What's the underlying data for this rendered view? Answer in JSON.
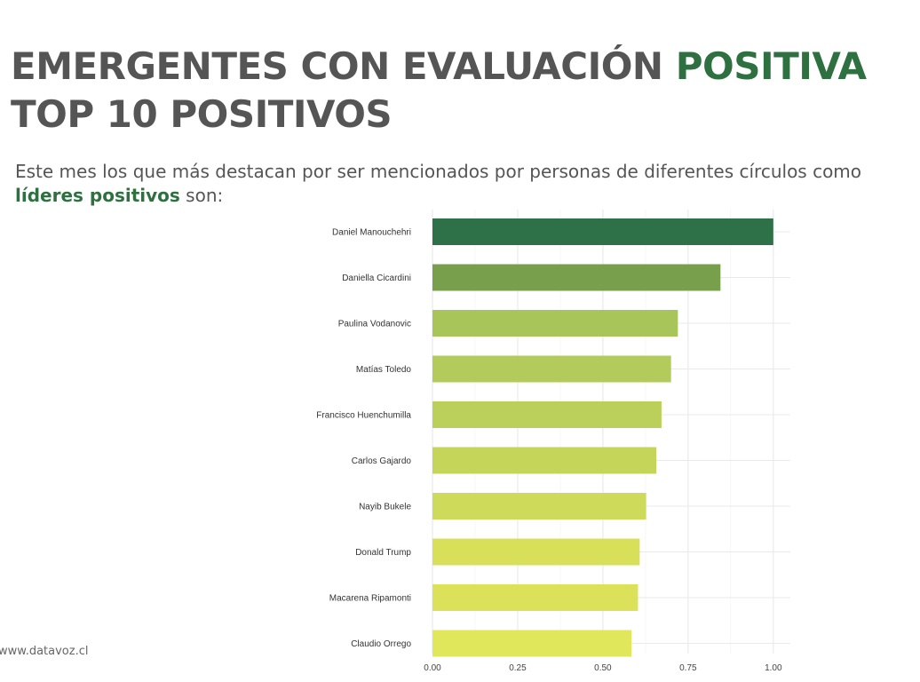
{
  "header": {
    "title_line1_main": "EMERGENTES CON EVALUACIÓN",
    "title_line1_accent": "POSITIVA",
    "title_line2": "TOP 10 POSITIVOS",
    "subtitle_before": "Este mes los que más destacan por ser mencionados por personas de diferentes círculos como",
    "subtitle_highlight": "líderes positivos",
    "subtitle_after": "son:"
  },
  "footer": {
    "text": "www.datavoz.cl"
  },
  "colors": {
    "accent": "#2e7040",
    "text": "#555555"
  },
  "chart_data": {
    "type": "bar",
    "orientation": "horizontal",
    "categories": [
      "Daniel Manouchehri",
      "Daniella Cicardini",
      "Paulina Vodanovic",
      "Matías Toledo",
      "Francisco Huenchumilla",
      "Carlos Gajardo",
      "Nayib Bukele",
      "Donald Trump",
      "Macarena Ripamonti",
      "Claudio Orrego"
    ],
    "values": [
      1.0,
      0.845,
      0.72,
      0.7,
      0.672,
      0.657,
      0.627,
      0.608,
      0.603,
      0.584
    ],
    "bar_colors": [
      "#2e7048",
      "#78a04c",
      "#a8c55a",
      "#b2cb5a",
      "#bbd05a",
      "#c5d55a",
      "#cedb5a",
      "#d8e05a",
      "#dbe25a",
      "#e0e75a"
    ],
    "xlim": [
      0,
      1.05
    ],
    "xticks": [
      "0.00",
      "0.25",
      "0.50",
      "0.75",
      "1.00"
    ],
    "grid": true,
    "legend": "none"
  }
}
